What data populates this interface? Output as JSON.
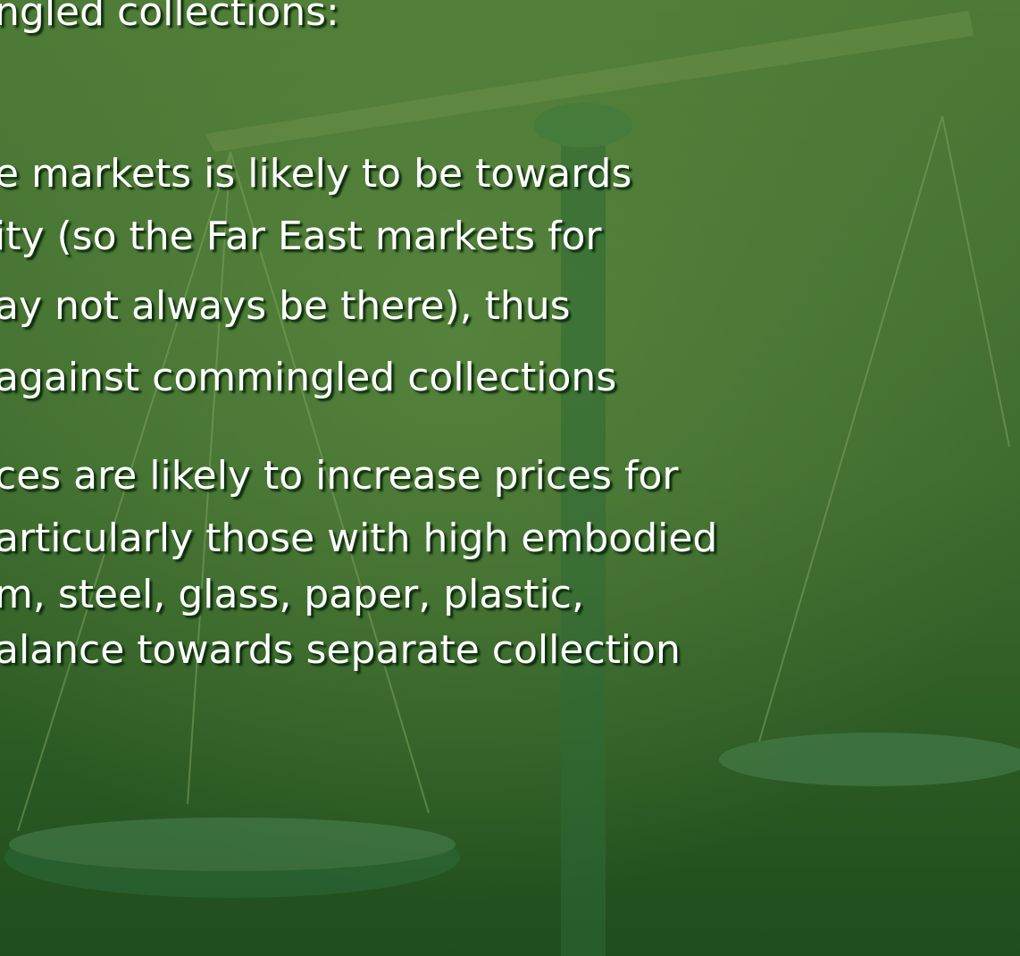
{
  "lines": [
    "ngled collections:",
    "e markets is likely to be towards",
    "ity (so the Far East markets for",
    "ay not always be there), thus",
    "against commingled collections",
    "ces are likely to increase prices for",
    "articularly those with high embodied",
    "m, steel, glass, paper, plastic,",
    "alance towards separate collection"
  ]
}
